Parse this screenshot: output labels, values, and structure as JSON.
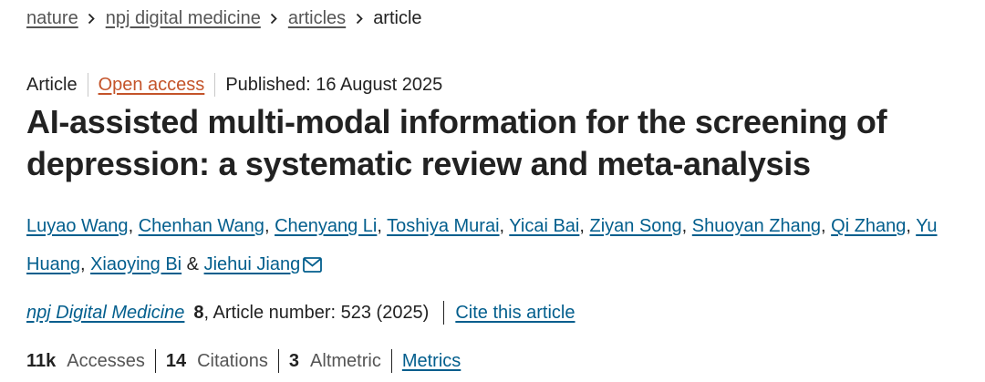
{
  "breadcrumb": {
    "items": [
      {
        "label": "nature"
      },
      {
        "label": "npj digital medicine"
      },
      {
        "label": "articles"
      }
    ],
    "current": "article",
    "separator_icon": "chevron-right-icon"
  },
  "meta": {
    "type": "Article",
    "access": "Open access",
    "published": "Published: 16 August 2025"
  },
  "title": "AI-assisted multi-modal information for the screening of depression: a systematic review and meta-analysis",
  "authors": [
    "Luyao Wang",
    "Chenhan Wang",
    "Chenyang Li",
    "Toshiya Murai",
    "Yicai Bai",
    "Ziyan Song",
    "Shuoyan Zhang",
    "Qi Zhang",
    "Yu Huang",
    "Xiaoying Bi",
    "Jiehui Jiang"
  ],
  "author_separators": {
    "comma": ", ",
    "ampersand": " & "
  },
  "corresponding_icon": "envelope-icon",
  "journal": {
    "name": "npj Digital Medicine",
    "volume": "8",
    "article_number": ", Article number: 523 (2025)",
    "cite_label": "Cite this article"
  },
  "metrics": {
    "accesses_count": "11k",
    "accesses_label": "Accesses",
    "citations_count": "14",
    "citations_label": "Citations",
    "altmetric_count": "3",
    "altmetric_label": "Altmetric",
    "metrics_link": "Metrics"
  },
  "colors": {
    "link_blue": "#025e8d",
    "open_access_orange": "#c4542a",
    "text": "#222222",
    "muted": "#555555"
  }
}
